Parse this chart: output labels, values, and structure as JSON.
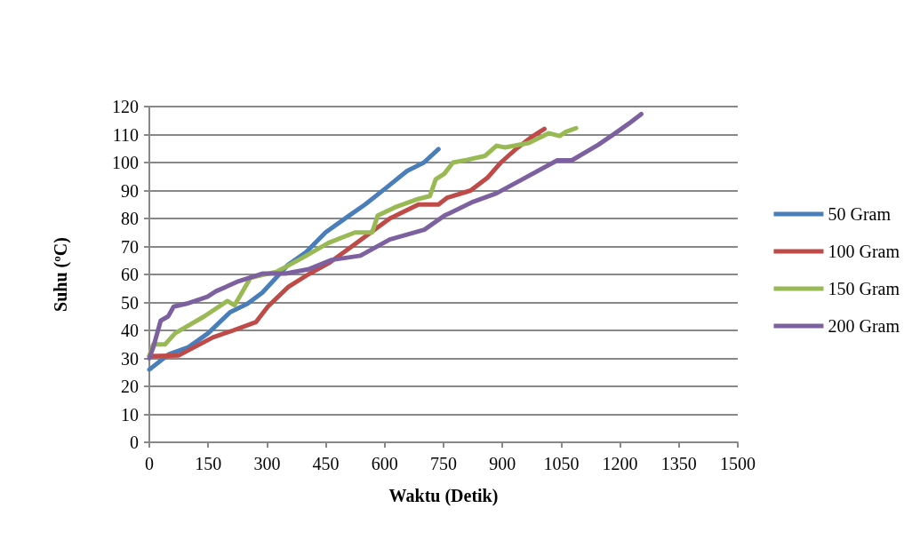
{
  "chart_data": {
    "type": "line",
    "xlabel": "Waktu (Detik)",
    "ylabel": "Suhu (ºC)",
    "xlim": [
      0,
      1500
    ],
    "xticks": [
      0,
      150,
      300,
      450,
      600,
      750,
      900,
      1050,
      1200,
      1350,
      1500
    ],
    "ylim": [
      0,
      120
    ],
    "yticks": [
      0,
      10,
      20,
      30,
      40,
      50,
      60,
      70,
      80,
      90,
      100,
      110,
      120
    ],
    "grid": "y",
    "legend": "right",
    "marker": "none",
    "line_style": "solid",
    "series": [
      {
        "name": "50 Gram",
        "color": "#4a7ebb",
        "x": [
          0,
          50,
          100,
          150,
          206,
          250,
          288,
          354,
          400,
          449,
          509,
          550,
          604,
          657,
          700,
          737
        ],
        "values": [
          26,
          31.5,
          34,
          39,
          46.5,
          49.5,
          53.5,
          63.5,
          68,
          75,
          81,
          85,
          91,
          97,
          100,
          104.8
        ]
      },
      {
        "name": "100 Gram",
        "color": "#be4b48",
        "x": [
          0,
          74,
          162,
          214,
          272,
          302,
          354,
          405,
          457,
          516,
          613,
          686,
          737,
          759,
          819,
          863,
          896,
          936,
          973,
          1007
        ],
        "values": [
          30.8,
          31,
          37.5,
          40,
          43,
          48.5,
          55.5,
          60,
          64,
          70,
          80,
          85,
          85,
          87.4,
          90,
          94.7,
          100,
          105,
          109,
          112
        ]
      },
      {
        "name": "150 Gram",
        "color": "#98b954",
        "x": [
          0,
          10,
          40,
          66,
          140,
          199,
          217,
          236,
          258,
          325,
          391,
          457,
          524,
          568,
          582,
          626,
          686,
          715,
          730,
          752,
          774,
          811,
          856,
          885,
          907,
          967,
          1018,
          1046,
          1062,
          1088
        ],
        "values": [
          31,
          35,
          35,
          39,
          45,
          50.5,
          49,
          53.5,
          58.8,
          61,
          66,
          71.3,
          75,
          75,
          81,
          84,
          87,
          88,
          94,
          96,
          100,
          101,
          102.4,
          106,
          105.4,
          107,
          110.5,
          109.5,
          111,
          112.3
        ]
      },
      {
        "name": "200 Gram",
        "color": "#7d60a0",
        "x": [
          0,
          11,
          29,
          48,
          62,
          96,
          148,
          170,
          228,
          288,
          347,
          405,
          465,
          538,
          613,
          701,
          752,
          767,
          826,
          885,
          951,
          1040,
          1077,
          1144,
          1188,
          1223,
          1254
        ],
        "values": [
          30,
          34.4,
          43.5,
          45,
          48.5,
          49.6,
          52,
          54,
          57.6,
          60.3,
          60.3,
          61.8,
          65.2,
          66.7,
          72.5,
          76,
          81,
          82,
          86,
          89,
          94,
          100.8,
          100.8,
          106.3,
          110.5,
          114,
          117.3
        ]
      }
    ]
  }
}
